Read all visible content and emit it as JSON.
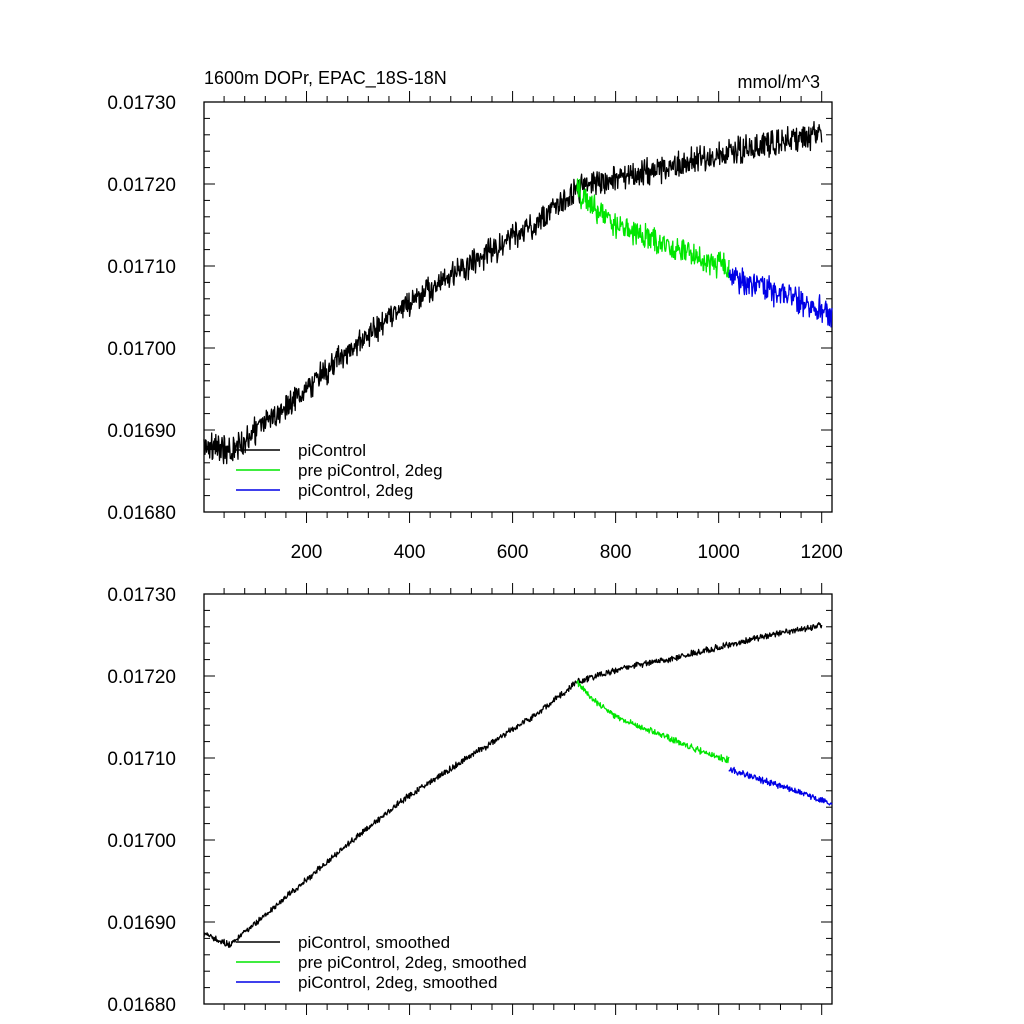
{
  "figure": {
    "title_left": "1600m DOPr, EPAC_18S-18N",
    "title_right": "mmol/m^3"
  },
  "chart_data": [
    {
      "type": "line",
      "panel": "top",
      "title": "1600m DOPr, EPAC_18S-18N",
      "units": "mmol/m^3",
      "xlabel": "",
      "ylabel": "",
      "xlim": [
        1,
        1220
      ],
      "ylim": [
        0.0168,
        0.0173
      ],
      "x_ticks": [
        200,
        400,
        600,
        800,
        1000,
        1200
      ],
      "x_tick_labels": [
        "200",
        "400",
        "600",
        "800",
        "1000",
        "1200"
      ],
      "y_ticks": [
        0.0168,
        0.0169,
        0.017,
        0.0171,
        0.0172,
        0.0173
      ],
      "y_tick_labels": [
        "0.01680",
        "0.01690",
        "0.01700",
        "0.01710",
        "0.01720",
        "0.01730"
      ],
      "grid": false,
      "legend_position": "bottom-left",
      "noise": 1.3e-05,
      "series": [
        {
          "name": "piControl",
          "color": "#000000",
          "x": [
            1,
            30,
            50,
            80,
            100,
            150,
            200,
            300,
            400,
            500,
            600,
            650,
            700,
            725,
            760,
            800,
            850,
            900,
            1000,
            1100,
            1200
          ],
          "y": [
            0.016885,
            0.016878,
            0.016872,
            0.016888,
            0.016898,
            0.016925,
            0.016952,
            0.017005,
            0.017055,
            0.017095,
            0.017135,
            0.017155,
            0.01718,
            0.017193,
            0.0172,
            0.017207,
            0.017214,
            0.01722,
            0.017235,
            0.01725,
            0.017262
          ]
        },
        {
          "name": "pre piControl, 2deg",
          "color": "#00e600",
          "x": [
            725,
            750,
            800,
            850,
            900,
            950,
            1020
          ],
          "y": [
            0.017193,
            0.017175,
            0.01715,
            0.017138,
            0.017125,
            0.017112,
            0.017097
          ]
        },
        {
          "name": "piControl, 2deg",
          "color": "#0000e6",
          "x": [
            1020,
            1050,
            1100,
            1150,
            1200,
            1220
          ],
          "y": [
            0.017087,
            0.01708,
            0.01707,
            0.01706,
            0.017048,
            0.017043
          ]
        }
      ]
    },
    {
      "type": "line",
      "panel": "bottom",
      "title": "",
      "xlabel": "",
      "ylabel": "",
      "xlim": [
        1,
        1220
      ],
      "ylim": [
        0.0168,
        0.0173
      ],
      "x_ticks": [
        200,
        400,
        600,
        800,
        1000,
        1200
      ],
      "x_tick_labels": [],
      "y_ticks": [
        0.0168,
        0.0169,
        0.017,
        0.0171,
        0.0172,
        0.0173
      ],
      "y_tick_labels": [
        "0.01680",
        "0.01690",
        "0.01700",
        "0.01710",
        "0.01720",
        "0.01730"
      ],
      "grid": false,
      "legend_position": "bottom-left",
      "noise": 3e-06,
      "series": [
        {
          "name": "piControl, smoothed",
          "color": "#000000",
          "x": [
            1,
            30,
            50,
            80,
            100,
            150,
            200,
            300,
            400,
            500,
            600,
            650,
            700,
            725,
            760,
            800,
            850,
            900,
            1000,
            1100,
            1200
          ],
          "y": [
            0.016885,
            0.016878,
            0.016872,
            0.016888,
            0.016898,
            0.016925,
            0.016952,
            0.017005,
            0.017055,
            0.017095,
            0.017135,
            0.017155,
            0.01718,
            0.017193,
            0.0172,
            0.017207,
            0.017214,
            0.01722,
            0.017235,
            0.01725,
            0.017262
          ]
        },
        {
          "name": "pre piControl, 2deg, smoothed",
          "color": "#00e600",
          "x": [
            725,
            750,
            800,
            850,
            900,
            950,
            1020
          ],
          "y": [
            0.017193,
            0.017175,
            0.01715,
            0.017138,
            0.017125,
            0.017112,
            0.017097
          ]
        },
        {
          "name": "piControl, 2deg, smoothed",
          "color": "#0000e6",
          "x": [
            1020,
            1050,
            1100,
            1150,
            1200,
            1220
          ],
          "y": [
            0.017087,
            0.01708,
            0.01707,
            0.01706,
            0.017048,
            0.017043
          ]
        }
      ]
    }
  ]
}
